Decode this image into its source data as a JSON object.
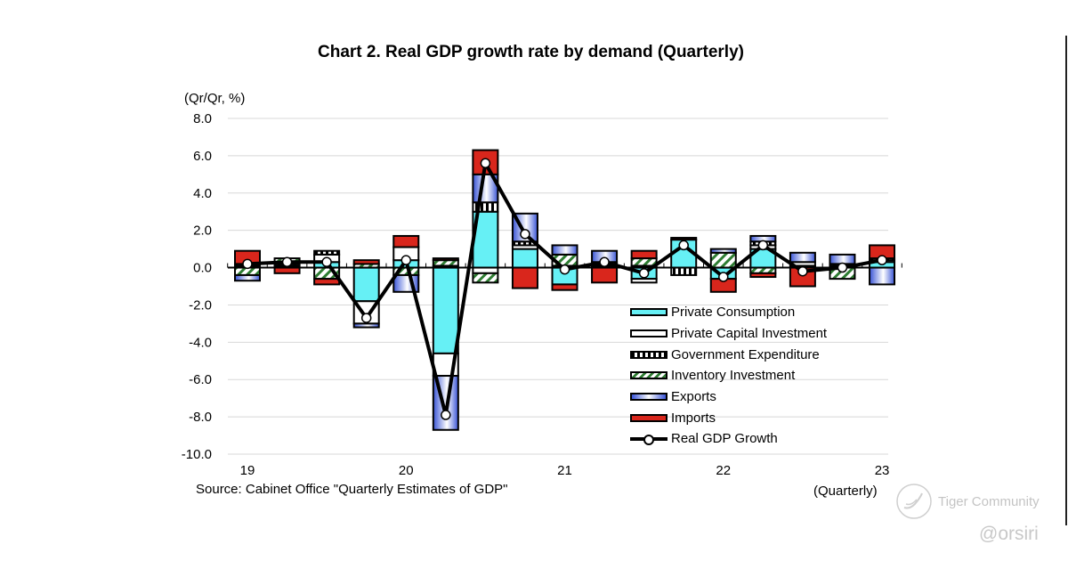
{
  "chart_data": {
    "type": "bar",
    "subtype": "stacked-bar-with-line",
    "title": "Chart 2. Real GDP growth rate by demand (Quarterly)",
    "ylabel": "(Qr/Qr, %)",
    "xlabel": "(Quarterly)",
    "ylim": [
      -10.0,
      8.0
    ],
    "yticks": [
      "8.0",
      "6.0",
      "4.0",
      "2.0",
      "0.0",
      "-2.0",
      "-4.0",
      "-6.0",
      "-8.0",
      "-10.0"
    ],
    "ytick_values": [
      8,
      6,
      4,
      2,
      0,
      -2,
      -4,
      -6,
      -8,
      -10
    ],
    "grid": true,
    "legend_position": "bottom-right-inside",
    "year_labels": [
      {
        "label": "19",
        "quarter_index": 0
      },
      {
        "label": "20",
        "quarter_index": 4
      },
      {
        "label": "21",
        "quarter_index": 8
      },
      {
        "label": "22",
        "quarter_index": 12
      },
      {
        "label": "23",
        "quarter_index": 16
      }
    ],
    "categories": [
      "2019Q1",
      "2019Q2",
      "2019Q3",
      "2019Q4",
      "2020Q1",
      "2020Q2",
      "2020Q3",
      "2020Q4",
      "2021Q1",
      "2021Q2",
      "2021Q3",
      "2021Q4",
      "2022Q1",
      "2022Q2",
      "2022Q3",
      "2022Q4",
      "2023Q1"
    ],
    "series": [
      {
        "name": "Private Consumption",
        "key": "pc",
        "color": "#66f0f5",
        "values": [
          0.1,
          0.1,
          0.3,
          -1.8,
          0.4,
          -4.6,
          3.0,
          1.0,
          -0.9,
          0.1,
          -0.6,
          1.5,
          -0.6,
          1.0,
          0.1,
          0.1,
          0.3
        ]
      },
      {
        "name": "Private Capital Investment",
        "key": "pci",
        "color": "#ffffff",
        "values": [
          0.0,
          0.0,
          0.4,
          -1.2,
          0.7,
          -1.2,
          -0.3,
          0.2,
          0.1,
          0.1,
          -0.2,
          0.0,
          0.0,
          0.2,
          0.2,
          0.0,
          0.1
        ]
      },
      {
        "name": "Government Expenditure",
        "key": "gov",
        "color": "#000000",
        "values": [
          0.1,
          0.1,
          0.2,
          0.0,
          0.0,
          0.1,
          0.5,
          0.2,
          0.0,
          0.1,
          0.1,
          -0.4,
          0.0,
          0.2,
          0.0,
          0.1,
          0.1
        ]
      },
      {
        "name": "Inventory Investment",
        "key": "inv",
        "color": "#2e7d32",
        "values": [
          -0.4,
          0.3,
          -0.6,
          0.2,
          -0.4,
          0.3,
          -0.5,
          0.0,
          0.6,
          0.0,
          0.4,
          0.0,
          0.8,
          -0.3,
          0.0,
          -0.6,
          0.0
        ]
      },
      {
        "name": "Exports",
        "key": "exp",
        "color": "#3a55d6",
        "values": [
          -0.3,
          0.0,
          0.0,
          -0.2,
          -0.9,
          -2.9,
          1.5,
          1.5,
          0.5,
          0.6,
          0.0,
          0.0,
          0.2,
          0.3,
          0.5,
          0.5,
          -0.9
        ]
      },
      {
        "name": "Imports",
        "key": "imp",
        "color": "#d9261c",
        "values": [
          0.7,
          -0.3,
          -0.3,
          0.2,
          0.6,
          0.1,
          1.3,
          -1.1,
          -0.3,
          -0.8,
          0.4,
          0.1,
          -0.7,
          -0.2,
          -1.0,
          0.0,
          0.7
        ]
      }
    ],
    "line": {
      "name": "Real GDP Growth",
      "key": "gdp",
      "color": "#000000",
      "values": [
        0.2,
        0.3,
        0.3,
        -2.7,
        0.4,
        -7.9,
        5.6,
        1.8,
        -0.1,
        0.3,
        -0.3,
        1.2,
        -0.5,
        1.2,
        -0.2,
        0.0,
        0.4
      ]
    },
    "source": "Source: Cabinet Office \"Quarterly Estimates of GDP\""
  },
  "watermark": {
    "brand": "Tiger Community",
    "handle": "@orsiri"
  }
}
